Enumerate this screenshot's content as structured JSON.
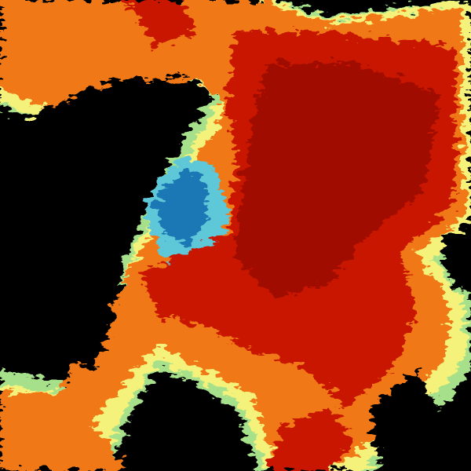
{
  "image": {
    "kind": "weather-radar-reflectivity",
    "palette": {
      "background": "#000000",
      "blue": "#1f78b4",
      "cyan": "#5ec8d8",
      "green": "#a6e08a",
      "yellow": "#f4f27a",
      "orange": "#f07818",
      "red": "#c81400",
      "dark_red": "#a00a00"
    }
  }
}
